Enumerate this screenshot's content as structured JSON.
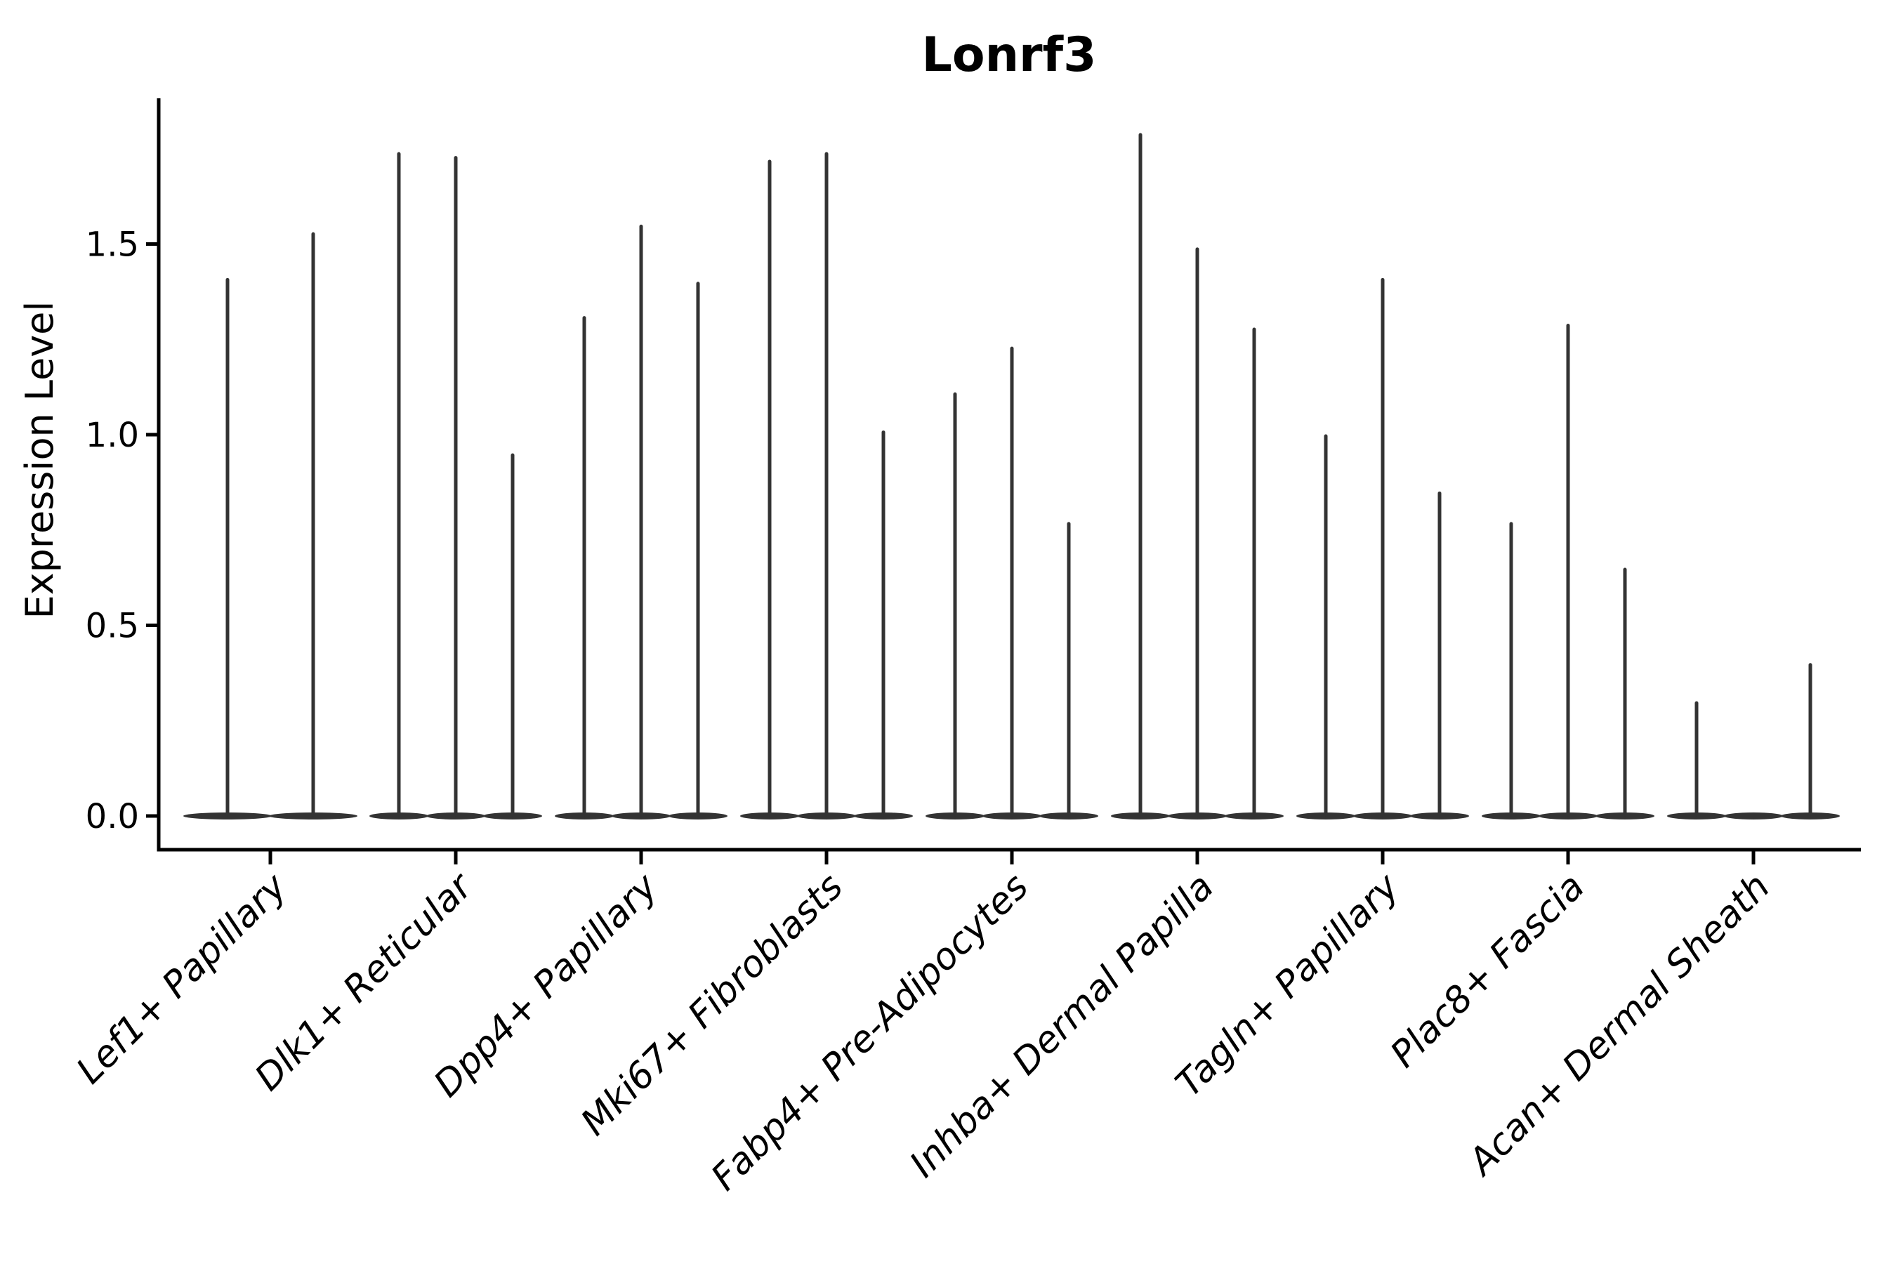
{
  "title": "Lonrf3",
  "ylabel": "Expression Level",
  "colors": {
    "violin": "#333333",
    "axis": "#000000",
    "text": "#000000",
    "background": "#ffffff"
  },
  "chart_data": {
    "type": "violin",
    "title": "Lonrf3",
    "xlabel": "",
    "ylabel": "Expression Level",
    "yticks": [
      0.0,
      0.5,
      1.0,
      1.5
    ],
    "ytick_labels": [
      "0.0",
      "0.5",
      "1.0",
      "1.5"
    ],
    "ylim": [
      -0.09,
      1.88
    ],
    "grid": false,
    "legend": false,
    "x_tick_rotation": 45,
    "x_tick_style": "italic",
    "baseline_value": 0.0,
    "description": "Violin plot of Lonrf3 expression; each category holds 2-3 very thin violins with density concentrated at 0 and a narrow spike up to the max expression value.",
    "categories": [
      "Lef1+ Papillary",
      "Dlk1+ Reticular",
      "Dpp4+ Papillary",
      "Mki67+ Fibroblasts",
      "Fabp4+ Pre-Adipocytes",
      "Inhba+ Dermal Papilla",
      "Tagln+ Papillary",
      "Plac8+ Fascia",
      "Acan+ Dermal Sheath"
    ],
    "series": [
      {
        "category": "Lef1+ Papillary",
        "violin_max_values": [
          1.41,
          1.53
        ]
      },
      {
        "category": "Dlk1+ Reticular",
        "violin_max_values": [
          1.74,
          1.73,
          0.95
        ]
      },
      {
        "category": "Dpp4+ Papillary",
        "violin_max_values": [
          1.31,
          1.55,
          1.4
        ]
      },
      {
        "category": "Mki67+ Fibroblasts",
        "violin_max_values": [
          1.72,
          1.74,
          1.01
        ]
      },
      {
        "category": "Fabp4+ Pre-Adipocytes",
        "violin_max_values": [
          1.11,
          1.23,
          0.77
        ]
      },
      {
        "category": "Inhba+ Dermal Papilla",
        "violin_max_values": [
          1.79,
          1.49,
          1.28
        ]
      },
      {
        "category": "Tagln+ Papillary",
        "violin_max_values": [
          1.0,
          1.41,
          0.85
        ]
      },
      {
        "category": "Plac8+ Fascia",
        "violin_max_values": [
          0.77,
          1.29,
          0.65
        ]
      },
      {
        "category": "Acan+ Dermal Sheath",
        "violin_max_values": [
          0.3,
          0.0,
          0.4
        ]
      }
    ]
  }
}
